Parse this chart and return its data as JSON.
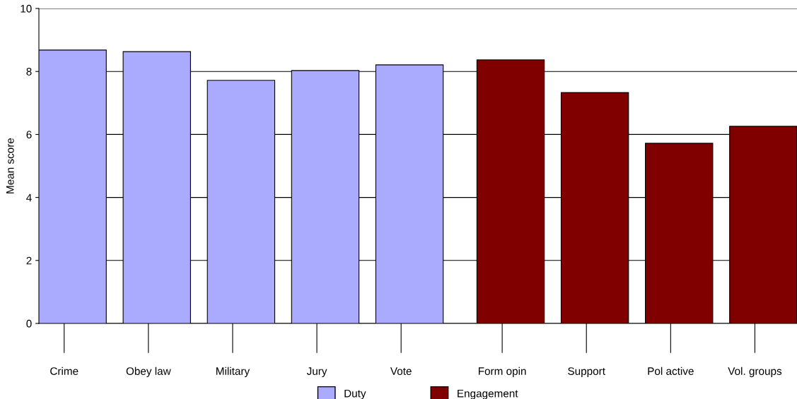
{
  "chart_data": {
    "type": "bar",
    "ylabel": "Mean score",
    "categories": [
      "Crime",
      "Obey law",
      "Military",
      "Jury",
      "Vote",
      "Form opin",
      "Support",
      "Pol active",
      "Vol. groups"
    ],
    "series": [
      {
        "name": "Duty",
        "color": "#aaaaff",
        "values": [
          8.68,
          8.63,
          7.72,
          8.03,
          8.21,
          null,
          null,
          null,
          null
        ]
      },
      {
        "name": "Engagement",
        "color": "#800000",
        "values": [
          null,
          null,
          null,
          null,
          null,
          8.37,
          7.33,
          5.72,
          6.26
        ]
      }
    ],
    "ylim": [
      0,
      10
    ],
    "yticks": [
      0,
      2,
      4,
      6,
      8,
      10
    ],
    "grid": "y",
    "legend": "bottom"
  }
}
